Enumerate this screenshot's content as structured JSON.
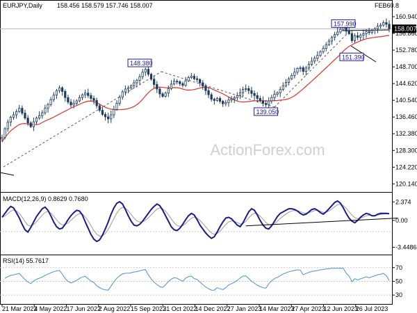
{
  "chart_data": [
    {
      "type": "candlestick",
      "title": "EURJPY,Daily",
      "ohlc_header": "158.456 158.579 157.746 158.007",
      "right_title": "FEB60.8",
      "current_price": "158.007",
      "y_ticks": [
        "160.940",
        "156.860",
        "152.780",
        "148.700",
        "144.620",
        "140.540",
        "136.460",
        "132.380",
        "128.300",
        "124.220",
        "120.140"
      ],
      "ylim": [
        118.5,
        162.3
      ],
      "x_labels": [
        "21 Mar 2022",
        "4 May 2022",
        "17 Jun 2022",
        "2 Aug 2022",
        "15 Sep 2022",
        "31 Oct 2022",
        "14 Dec 2022",
        "27 Jan 2023",
        "14 Mar 2023",
        "27 Apr 2023",
        "12 Jun 2023",
        "26 Jul 2023"
      ],
      "watermark": "ActionForex.com",
      "annotations": [
        {
          "text": "157.990",
          "date_index": 119,
          "value": 157.99
        },
        {
          "text": "148.380",
          "date_index": 48,
          "value": 148.38
        },
        {
          "text": "151.390",
          "date_index": 127,
          "value": 151.39
        },
        {
          "text": "139.050",
          "date_index": 92,
          "value": 139.05
        }
      ],
      "close_series": [
        131.5,
        133.6,
        135.2,
        136.4,
        137.0,
        137.8,
        138.6,
        137.4,
        136.2,
        135.0,
        134.1,
        135.3,
        136.2,
        136.8,
        137.5,
        138.6,
        139.5,
        140.7,
        141.8,
        142.9,
        143.6,
        142.7,
        141.2,
        140.1,
        139.4,
        139.8,
        140.4,
        141.2,
        141.9,
        142.3,
        141.7,
        141.0,
        140.5,
        139.2,
        138.1,
        137.1,
        136.5,
        136.0,
        137.0,
        138.3,
        139.8,
        141.3,
        142.6,
        143.3,
        143.6,
        144.1,
        144.8,
        145.4,
        146.3,
        147.4,
        148.1,
        146.9,
        145.7,
        144.4,
        143.3,
        142.1,
        141.5,
        142.3,
        143.4,
        144.5,
        145.2,
        145.1,
        144.6,
        144.2,
        145.3,
        146.1,
        146.4,
        145.8,
        145.6,
        144.8,
        144.0,
        142.9,
        141.9,
        140.8,
        140.5,
        141.0,
        140.3,
        139.7,
        140.0,
        140.6,
        140.9,
        141.2,
        141.7,
        142.4,
        143.2,
        143.4,
        142.9,
        142.2,
        141.7,
        141.0,
        140.4,
        139.8,
        139.5,
        140.4,
        141.2,
        142.0,
        142.4,
        143.2,
        144.1,
        144.9,
        145.8,
        146.6,
        147.4,
        148.3,
        148.5,
        147.6,
        148.4,
        149.3,
        150.1,
        150.8,
        151.5,
        152.4,
        153.2,
        154.1,
        155.0,
        155.9,
        156.6,
        157.2,
        157.9,
        158.3,
        157.4,
        156.8,
        155.1,
        156.3,
        155.9,
        156.4,
        156.8,
        157.3,
        157.1,
        157.6,
        158.0,
        158.6,
        158.9,
        159.5,
        159.1,
        158.0
      ]
    },
    {
      "type": "line",
      "title": "MACD(12,26,9) 0.8629 0.7680",
      "y_ticks": [
        "2.374",
        "0.00",
        "-3.4486"
      ],
      "ylim": [
        -4.2,
        3.2
      ],
      "macd_series": [
        0.4,
        0.9,
        1.4,
        1.8,
        1.6,
        1.0,
        0.3,
        -0.5,
        -1.2,
        -1.5,
        -0.9,
        -0.2,
        0.5,
        1.0,
        1.5,
        1.7,
        1.3,
        0.6,
        -0.2,
        -0.8,
        -1.1,
        -1.0,
        -0.5,
        0.1,
        0.6,
        1.0,
        1.3,
        1.2,
        0.7,
        -0.2,
        -1.0,
        -1.8,
        -2.4,
        -2.7,
        -2.5,
        -1.9,
        -1.1,
        -0.2,
        0.8,
        1.6,
        2.2,
        2.4,
        2.1,
        1.4,
        0.6,
        -0.1,
        -0.6,
        -0.7,
        -0.5,
        -0.1,
        0.4,
        0.9,
        1.4,
        1.8,
        2.1,
        1.9,
        1.3,
        0.6,
        -0.1,
        -0.8,
        -1.2,
        -1.3,
        -1.0,
        -0.5,
        0.1,
        0.6,
        0.9,
        0.7,
        0.1,
        -0.6,
        -1.1,
        -1.6,
        -2.0,
        -2.3,
        -2.1,
        -1.5,
        -0.8,
        -0.2,
        0.3,
        0.4,
        0.2,
        -0.2,
        -0.6,
        -0.8,
        -0.3,
        0.4,
        1.1,
        1.5,
        1.3,
        0.7,
        0.0,
        -0.6,
        -1.0,
        -1.1,
        -0.7,
        -0.1,
        0.5,
        0.9,
        1.1,
        1.3,
        1.5,
        1.5,
        1.4,
        1.2,
        0.9,
        0.7,
        0.8,
        1.1,
        1.4,
        1.5,
        1.3,
        1.0,
        0.8,
        1.1,
        1.5,
        1.9,
        2.3,
        2.5,
        2.2,
        1.6,
        0.9,
        0.3,
        -0.1,
        -0.3,
        0.0,
        0.4,
        0.7,
        0.9,
        0.8,
        0.6,
        0.6,
        0.8,
        0.9,
        0.9,
        0.9,
        0.86
      ],
      "trendline_from": [
        85,
        -0.7
      ],
      "trendline_to": [
        138,
        0.3
      ]
    },
    {
      "type": "line",
      "title": "RSI(14) 55.7617",
      "y_ticks": [
        "70",
        "50",
        "30"
      ],
      "ylim": [
        20,
        85
      ],
      "levels": [
        70,
        50,
        30
      ]
    }
  ]
}
